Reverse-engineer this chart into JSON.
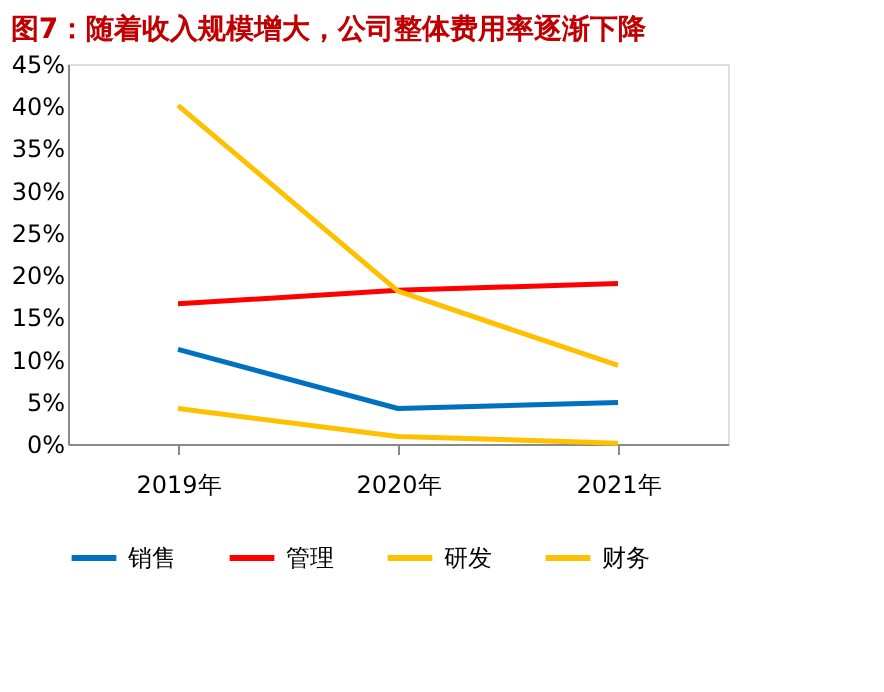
{
  "chart_data": {
    "type": "line",
    "title": "图7：随着收入规模增大，公司整体费用率逐渐下降",
    "categories": [
      "2019年",
      "2020年",
      "2021年"
    ],
    "series": [
      {
        "name": "销售",
        "color": "#0070c0",
        "values": [
          11.2,
          4.2,
          4.9
        ]
      },
      {
        "name": "管理",
        "color": "#ff0000",
        "values": [
          16.6,
          18.2,
          19.0
        ]
      },
      {
        "name": "研发",
        "color": "#ffc000",
        "values": [
          40.1,
          18.1,
          9.3
        ]
      },
      {
        "name": "财务",
        "color": "#ffc000",
        "values": [
          4.2,
          0.9,
          0.1
        ]
      }
    ],
    "ylim": [
      0,
      45
    ],
    "yticks": [
      {
        "value": 0,
        "label": "0%"
      },
      {
        "value": 5,
        "label": "5%"
      },
      {
        "value": 10,
        "label": "10%"
      },
      {
        "value": 15,
        "label": "15%"
      },
      {
        "value": 20,
        "label": "20%"
      },
      {
        "value": 25,
        "label": "25%"
      },
      {
        "value": 30,
        "label": "30%"
      },
      {
        "value": 35,
        "label": "35%"
      },
      {
        "value": 40,
        "label": "40%"
      },
      {
        "value": 45,
        "label": "45%"
      }
    ],
    "grid": false,
    "legend": "bottom",
    "marker": "none",
    "line_style": "solid"
  }
}
